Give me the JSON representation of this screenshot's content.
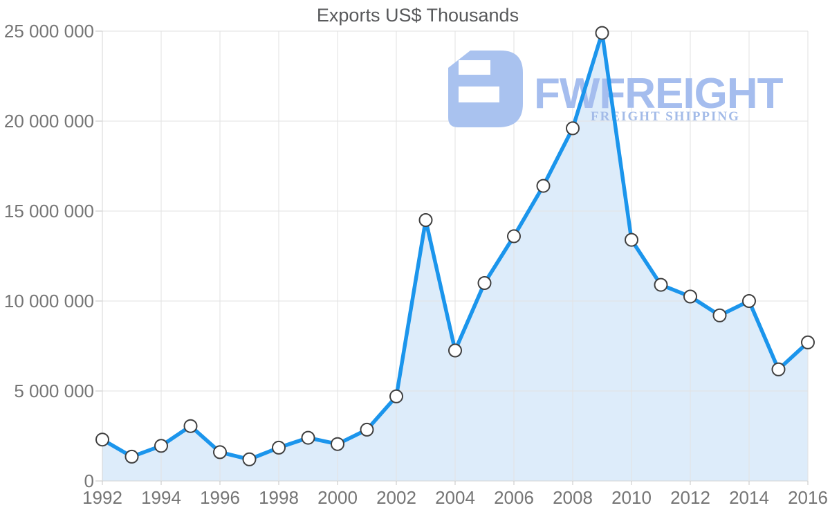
{
  "chart_data": {
    "type": "area",
    "title": "Exports US$ Thousands",
    "x": [
      1992,
      1993,
      1994,
      1995,
      1996,
      1997,
      1998,
      1999,
      2000,
      2001,
      2002,
      2003,
      2004,
      2005,
      2006,
      2007,
      2008,
      2009,
      2010,
      2011,
      2012,
      2013,
      2014,
      2015,
      2016
    ],
    "values": [
      2300000,
      1350000,
      1950000,
      3050000,
      1600000,
      1200000,
      1850000,
      2400000,
      2050000,
      2850000,
      4700000,
      14500000,
      7250000,
      11000000,
      13600000,
      16400000,
      19600000,
      24900000,
      13400000,
      10900000,
      10250000,
      9200000,
      10000000,
      6200000,
      7700000
    ],
    "xlabel": "",
    "ylabel": "",
    "ylim": [
      0,
      25000000
    ],
    "y_tick_step": 5000000,
    "y_tick_labels": [
      "0",
      "5 000 000",
      "10 000 000",
      "15 000 000",
      "20 000 000",
      "25 000 000"
    ],
    "x_tick_labels": [
      "1992",
      "1994",
      "1996",
      "1998",
      "2000",
      "2002",
      "2004",
      "2006",
      "2008",
      "2010",
      "2012",
      "2014",
      "2016"
    ],
    "x_label_step": 2,
    "grid": "on",
    "legend": "none",
    "colors": {
      "line": "#1b95ec",
      "area_fill": "#ddecfa",
      "marker_fill": "#ffffff",
      "marker_stroke": "#3f3f3f",
      "grid": "#e2e2e2",
      "label_text": "#757575",
      "title_text": "#58595b"
    }
  },
  "watermark": {
    "brand": "FWFREIGHT",
    "subtitle": "FREIGHT SHIPPING",
    "logo_icon": "fwfreight-logo",
    "colors": {
      "logo": "#a9c2ef",
      "brand_text": "#a5bdee",
      "subtitle_text": "#a3bbe8"
    }
  }
}
